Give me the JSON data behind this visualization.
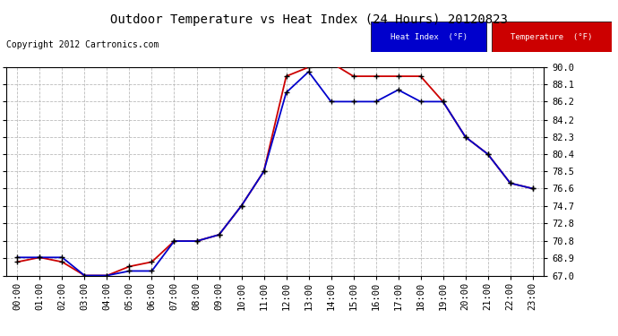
{
  "title": "Outdoor Temperature vs Heat Index (24 Hours) 20120823",
  "copyright": "Copyright 2012 Cartronics.com",
  "hours": [
    "00:00",
    "01:00",
    "02:00",
    "03:00",
    "04:00",
    "05:00",
    "06:00",
    "07:00",
    "08:00",
    "09:00",
    "10:00",
    "11:00",
    "12:00",
    "13:00",
    "14:00",
    "15:00",
    "16:00",
    "17:00",
    "18:00",
    "19:00",
    "20:00",
    "21:00",
    "22:00",
    "23:00"
  ],
  "temperature": [
    68.5,
    69.0,
    68.5,
    67.0,
    67.0,
    68.0,
    68.5,
    70.8,
    70.8,
    71.5,
    74.7,
    78.5,
    89.0,
    90.0,
    90.5,
    89.0,
    89.0,
    89.0,
    89.0,
    86.2,
    82.3,
    80.4,
    77.2,
    76.6
  ],
  "heat_index": [
    69.0,
    69.0,
    69.0,
    67.0,
    67.0,
    67.5,
    67.5,
    70.8,
    70.8,
    71.5,
    74.7,
    78.5,
    87.2,
    89.5,
    86.2,
    86.2,
    86.2,
    87.5,
    86.2,
    86.2,
    82.3,
    80.4,
    77.2,
    76.6
  ],
  "ylim": [
    67.0,
    90.0
  ],
  "yticks": [
    67.0,
    68.9,
    70.8,
    72.8,
    74.7,
    76.6,
    78.5,
    80.4,
    82.3,
    84.2,
    86.2,
    88.1,
    90.0
  ],
  "temp_color": "#cc0000",
  "heat_index_color": "#0000cc",
  "bg_color": "#ffffff",
  "plot_bg_color": "#ffffff",
  "grid_color": "#bbbbbb",
  "legend_heat_bg": "#0000cc",
  "legend_temp_bg": "#cc0000",
  "title_fontsize": 10,
  "tick_fontsize": 7.5,
  "copyright_fontsize": 7
}
